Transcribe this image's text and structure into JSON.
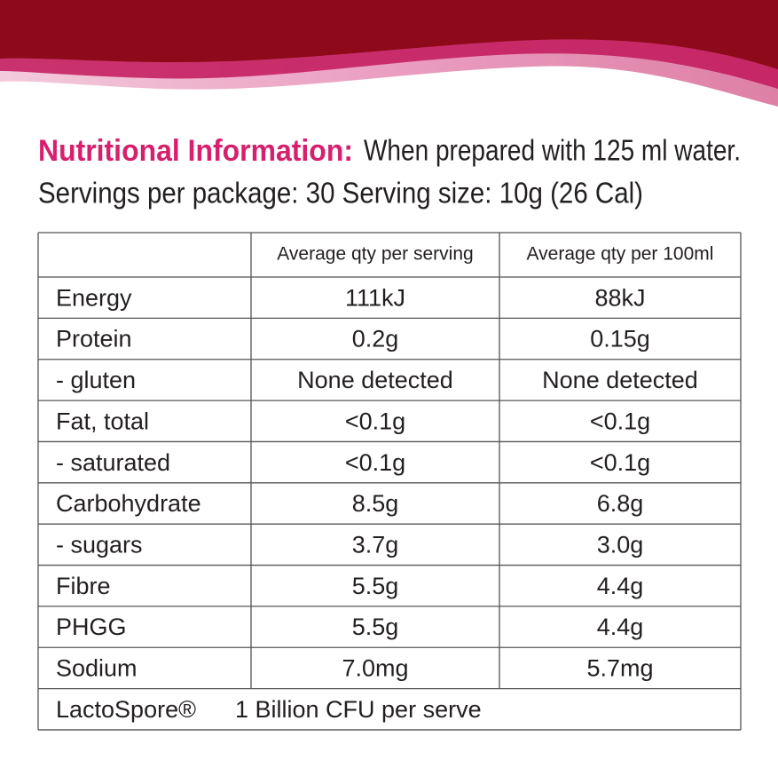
{
  "header": {
    "title": "Nutritional Information:",
    "subtitle": "When prepared with 125 ml water.",
    "servings": "Servings per package: 30  Serving size: 10g  (26 Cal)"
  },
  "table": {
    "columns": [
      "Average qty per serving",
      "Average qty per 100ml"
    ],
    "rows": [
      [
        "Energy",
        "111kJ",
        "88kJ"
      ],
      [
        "Protein",
        "0.2g",
        "0.15g"
      ],
      [
        "- gluten",
        "None detected",
        "None detected"
      ],
      [
        "Fat, total",
        "<0.1g",
        "<0.1g"
      ],
      [
        "- saturated",
        "<0.1g",
        "<0.1g"
      ],
      [
        "Carbohydrate",
        "8.5g",
        "6.8g"
      ],
      [
        "- sugars",
        "3.7g",
        "3.0g"
      ],
      [
        "Fibre",
        "5.5g",
        "4.4g"
      ],
      [
        "PHGG",
        "5.5g",
        "4.4g"
      ],
      [
        "Sodium",
        "7.0mg",
        "5.7mg"
      ]
    ],
    "footer": [
      "LactoSpore®",
      "1 Billion CFU per serve"
    ]
  }
}
